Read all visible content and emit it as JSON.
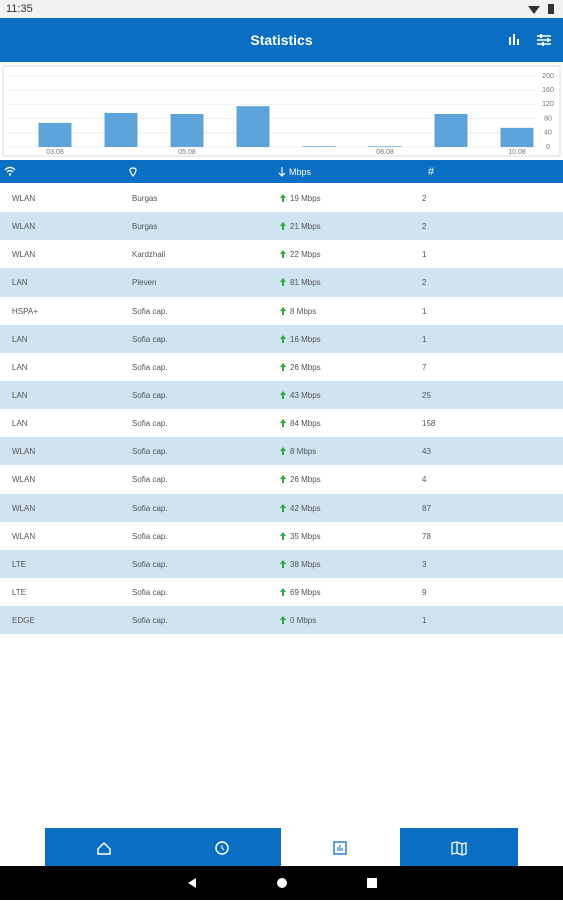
{
  "status_bar": {
    "time": "11:35"
  },
  "app_bar": {
    "title": "Statistics"
  },
  "chart_data": {
    "type": "bar",
    "categories": [
      "03.08",
      null,
      "05.08",
      null,
      null,
      "08.08",
      null,
      "10.08"
    ],
    "values": [
      68,
      96,
      93,
      115,
      2,
      2,
      93,
      54
    ],
    "color": "#5ea3d9",
    "ylim": [
      0,
      200
    ],
    "yticks": [
      0,
      40,
      80,
      120,
      160,
      200
    ],
    "grid": true
  },
  "table": {
    "header": [
      "Mbps",
      "#"
    ],
    "rows": [
      [
        "WLAN",
        "Burgas",
        "19 Mbps",
        2
      ],
      [
        "WLAN",
        "Burgas",
        "21 Mbps",
        2
      ],
      [
        "WLAN",
        "Kardzhali",
        "22 Mbps",
        1
      ],
      [
        "LAN",
        "Pleven",
        "81 Mbps",
        2
      ],
      [
        "HSPA+",
        "Sofia cap.",
        "8 Mbps",
        1
      ],
      [
        "LAN",
        "Sofia cap.",
        "16 Mbps",
        1
      ],
      [
        "LAN",
        "Sofia cap.",
        "26 Mbps",
        7
      ],
      [
        "LAN",
        "Sofia cap.",
        "43 Mbps",
        25
      ],
      [
        "LAN",
        "Sofia cap.",
        "84 Mbps",
        158
      ],
      [
        "WLAN",
        "Sofia cap.",
        "8 Mbps",
        43
      ],
      [
        "WLAN",
        "Sofia cap.",
        "26 Mbps",
        4
      ],
      [
        "WLAN",
        "Sofia cap.",
        "42 Mbps",
        87
      ],
      [
        "WLAN",
        "Sofia cap.",
        "35 Mbps",
        78
      ],
      [
        "LTE",
        "Sofia cap.",
        "38 Mbps",
        3
      ],
      [
        "LTE",
        "Sofia cap.",
        "69 Mbps",
        9
      ],
      [
        "EDGE",
        "Sofia cap.",
        "0 Mbps",
        1
      ]
    ]
  }
}
